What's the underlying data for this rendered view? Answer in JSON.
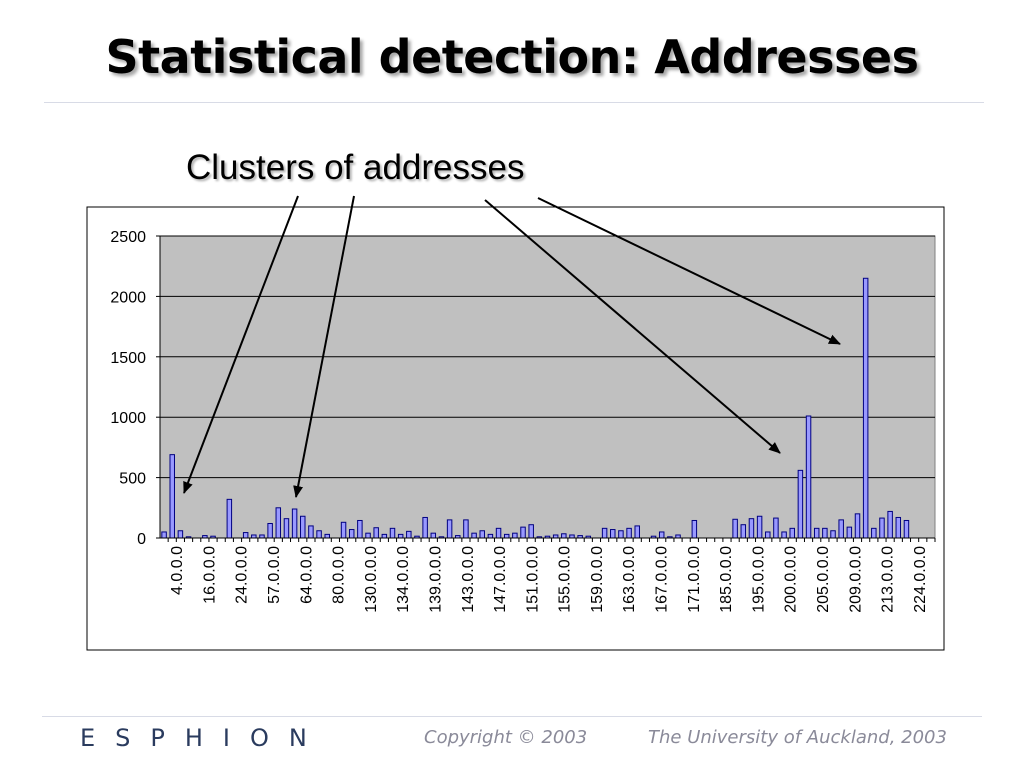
{
  "slide": {
    "title": "Statistical detection: Addresses",
    "subtitle": "Clusters of addresses",
    "logo": "ESPHION",
    "copyright": "Copyright © 2003",
    "university": "The University of Auckland, 2003"
  },
  "colors": {
    "plot_background": "#c0c0c0",
    "bar_fill": "#9999ff",
    "bar_stroke": "#000080",
    "gridline": "#000000"
  },
  "chart_data": {
    "type": "bar",
    "title": "",
    "xlabel": "",
    "ylabel": "",
    "ylim": [
      0,
      2500
    ],
    "yticks": [
      0,
      500,
      1000,
      1500,
      2000,
      2500
    ],
    "grid": true,
    "legend": "none",
    "tick_labels": [
      "4.0.0.0",
      "16.0.0.0",
      "24.0.0.0",
      "57.0.0.0",
      "64.0.0.0",
      "80.0.0.0",
      "130.0.0.0",
      "134.0.0.0",
      "139.0.0.0",
      "143.0.0.0",
      "147.0.0.0",
      "151.0.0.0",
      "155.0.0.0",
      "159.0.0.0",
      "163.0.0.0",
      "167.0.0.0",
      "171.0.0.0",
      "185.0.0.0",
      "195.0.0.0",
      "200.0.0.0",
      "205.0.0.0",
      "209.0.0.0",
      "213.0.0.0",
      "224.0.0.0"
    ],
    "values": [
      50,
      690,
      60,
      10,
      0,
      20,
      15,
      0,
      320,
      0,
      45,
      25,
      25,
      120,
      250,
      160,
      240,
      180,
      100,
      60,
      30,
      0,
      130,
      70,
      145,
      40,
      85,
      30,
      80,
      30,
      55,
      15,
      170,
      40,
      10,
      150,
      20,
      150,
      40,
      60,
      30,
      80,
      30,
      40,
      90,
      110,
      10,
      15,
      25,
      35,
      25,
      20,
      15,
      0,
      80,
      70,
      60,
      80,
      100,
      0,
      15,
      50,
      10,
      25,
      0,
      145,
      0,
      0,
      0,
      0,
      155,
      110,
      160,
      180,
      50,
      165,
      50,
      80,
      560,
      1010,
      80,
      80,
      60,
      150,
      90,
      200,
      2150,
      80,
      165,
      220,
      170,
      145,
      0,
      0,
      0
    ],
    "annotation": "Clusters of addresses"
  }
}
